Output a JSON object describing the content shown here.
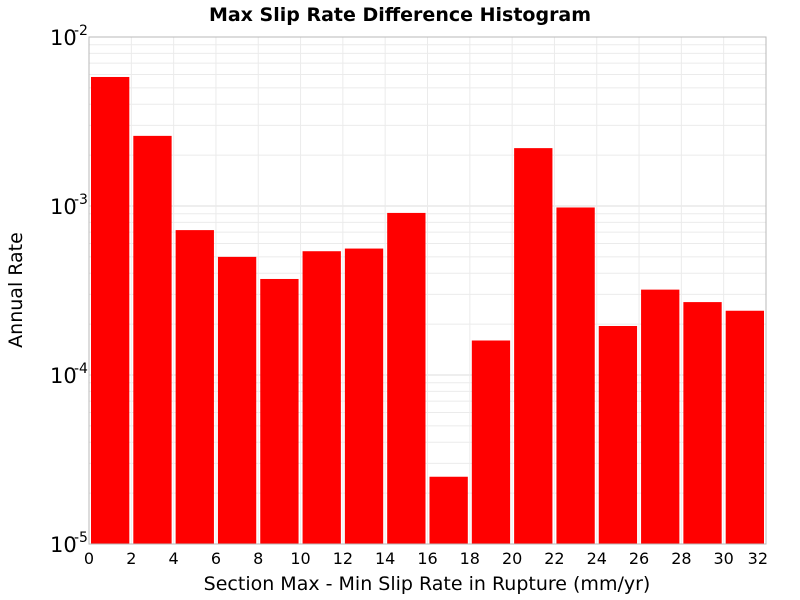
{
  "chart_data": {
    "type": "bar",
    "title": "Max Slip Rate Difference Histogram",
    "xlabel": "Section Max - Min Slip Rate in Rupture (mm/yr)",
    "ylabel": "Annual Rate",
    "x_bin_width": 2,
    "x_bin_centers": [
      1,
      3,
      5,
      7,
      9,
      11,
      13,
      15,
      17,
      19,
      21,
      23,
      25,
      27,
      29,
      31
    ],
    "values": [
      0.0058,
      0.0026,
      0.00072,
      0.0005,
      0.00037,
      0.00054,
      0.00056,
      0.00091,
      2.5e-05,
      0.00016,
      0.0022,
      0.00098,
      0.000195,
      0.00032,
      0.00027,
      0.00024
    ],
    "xlim": [
      0,
      32
    ],
    "ylim": [
      1e-05,
      0.01
    ],
    "y_scale": "log",
    "x_ticks": [
      "0",
      "2",
      "4",
      "6",
      "8",
      "10",
      "12",
      "14",
      "16",
      "18",
      "20",
      "22",
      "24",
      "26",
      "28",
      "30",
      "32"
    ],
    "y_ticks": [
      {
        "base": "10",
        "exp": "-5"
      },
      {
        "base": "10",
        "exp": "-4"
      },
      {
        "base": "10",
        "exp": "-3"
      },
      {
        "base": "10",
        "exp": "-2"
      }
    ],
    "grid": true,
    "bar_color": "#ff0000",
    "grid_color": "#ebebeb",
    "axis_color": "#b8b8b8"
  }
}
